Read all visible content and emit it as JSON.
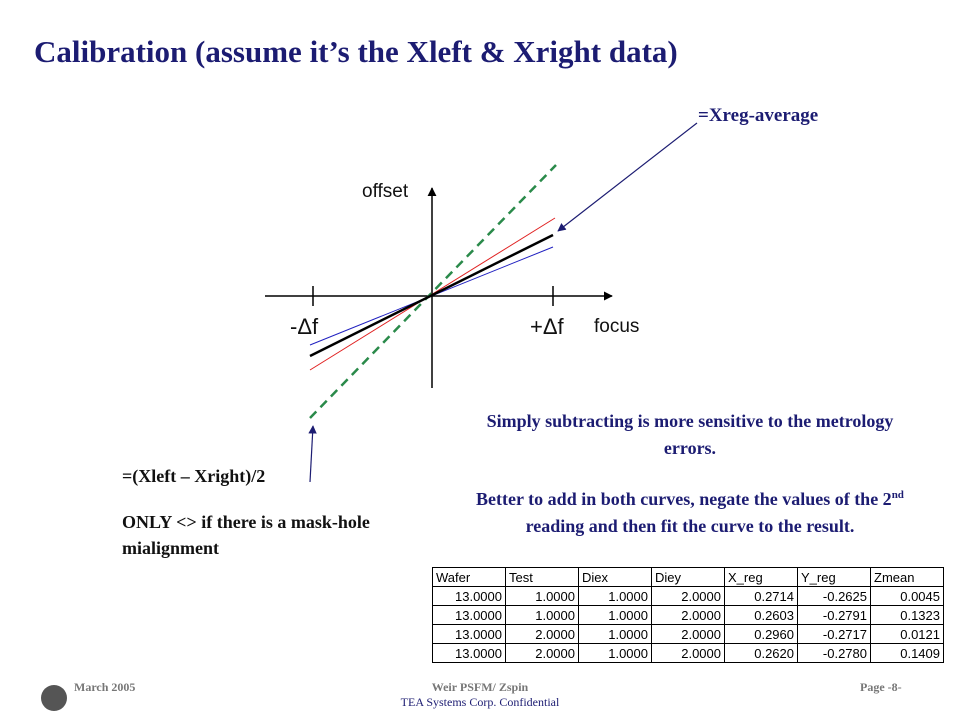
{
  "slide": {
    "title": "Calibration (assume it’s the Xleft  & Xright data)",
    "diagram": {
      "average_label": "=Xreg-average",
      "y_axis_label": "offset",
      "x_axis_label": "focus",
      "minus_label": "-Δf",
      "plus_label": "+Δf",
      "difference_label": "=(Xleft – Xright)/2",
      "difference_note": "ONLY <> if  there is a mask-hole mialignment"
    },
    "notes": {
      "first": "Simply subtracting is more sensitive to the metrology errors.",
      "second_before": "Better to add in both curves, negate the values of the 2",
      "second_sup": "nd",
      "second_after": " reading and then fit the curve to the result."
    },
    "table": {
      "header": [
        "Wafer",
        "Test",
        "Diex",
        "Diey",
        "X_reg",
        "Y_reg",
        "Zmean"
      ],
      "rows": [
        [
          "13.0000",
          "1.0000",
          "1.0000",
          "2.0000",
          "0.2714",
          "-0.2625",
          "0.0045"
        ],
        [
          "13.0000",
          "1.0000",
          "1.0000",
          "2.0000",
          "0.2603",
          "-0.2791",
          "0.1323"
        ],
        [
          "13.0000",
          "2.0000",
          "1.0000",
          "2.0000",
          "0.2960",
          "-0.2717",
          "0.0121"
        ],
        [
          "13.0000",
          "2.0000",
          "1.0000",
          "2.0000",
          "0.2620",
          "-0.2780",
          "0.1409"
        ]
      ]
    },
    "footer": {
      "date": "March 2005",
      "center": "Weir PSFM/ Zspin",
      "company": "TEA Systems Corp. Confidential",
      "page": "Page -8-"
    }
  }
}
